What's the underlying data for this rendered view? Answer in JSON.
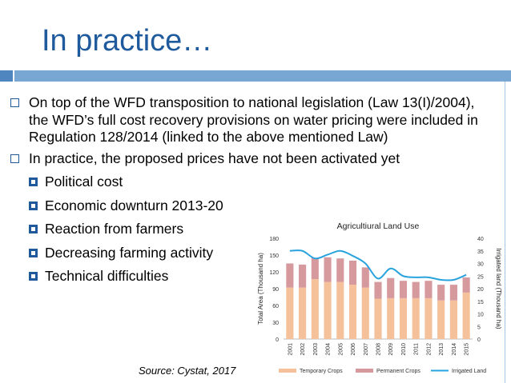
{
  "title": "In practice…",
  "bullets": [
    {
      "text": "On top of the WFD transposition to national legislation (Law 13(I)/2004), the WFD’s full cost recovery provisions on water pricing were included in Regulation 128/2014 (linked to the above mentioned Law)"
    },
    {
      "text": "In practice, the proposed prices have not been activated yet"
    }
  ],
  "sub_bullets": [
    "Political cost",
    "Economic downturn 2013-20",
    "Reaction from farmers",
    "Decreasing farming activity",
    "Technical difficulties"
  ],
  "source": "Source: Cystat, 2017",
  "colors": {
    "title": "#1f5a9c",
    "bar_temporary": "#f4c19a",
    "bar_permanent": "#d69a9e",
    "line_irrigated": "#29a3dd"
  },
  "chart_data": {
    "type": "bar",
    "title": "Agricultiural Land Use",
    "ylabel": "Total Area (Thousand ha)",
    "y2label": "Irrigated land (Thousand ha)",
    "ylim": [
      0,
      180
    ],
    "y2lim": [
      0,
      40
    ],
    "yticks": [
      "0",
      "30",
      "60",
      "90",
      "120",
      "150",
      "180"
    ],
    "y2ticks": [
      "0",
      "5",
      "10",
      "15",
      "20",
      "25",
      "30",
      "35",
      "40"
    ],
    "categories": [
      "2001",
      "2002",
      "2003",
      "2004",
      "2005",
      "2006",
      "2007",
      "2008",
      "2009",
      "2010",
      "2011",
      "2012",
      "2013",
      "2014",
      "2015"
    ],
    "series": [
      {
        "name": "Temporary Crops",
        "kind": "bar-stack",
        "values": [
          92,
          92,
          107,
          102,
          102,
          97,
          92,
          72,
          73,
          73,
          73,
          73,
          69,
          69,
          83
        ]
      },
      {
        "name": "Permanent Crops",
        "kind": "bar-stack",
        "values": [
          43,
          41,
          38,
          44,
          42,
          43,
          36,
          30,
          36,
          31,
          29,
          31,
          28,
          28,
          27
        ]
      },
      {
        "name": "Irrigated Land",
        "kind": "line",
        "axis": "right",
        "values": [
          35,
          35,
          32,
          33.5,
          35,
          33,
          30,
          24,
          28,
          25,
          24.5,
          24.5,
          23.5,
          23.5,
          25.5
        ]
      }
    ],
    "legend": "bottom",
    "grid": false
  }
}
